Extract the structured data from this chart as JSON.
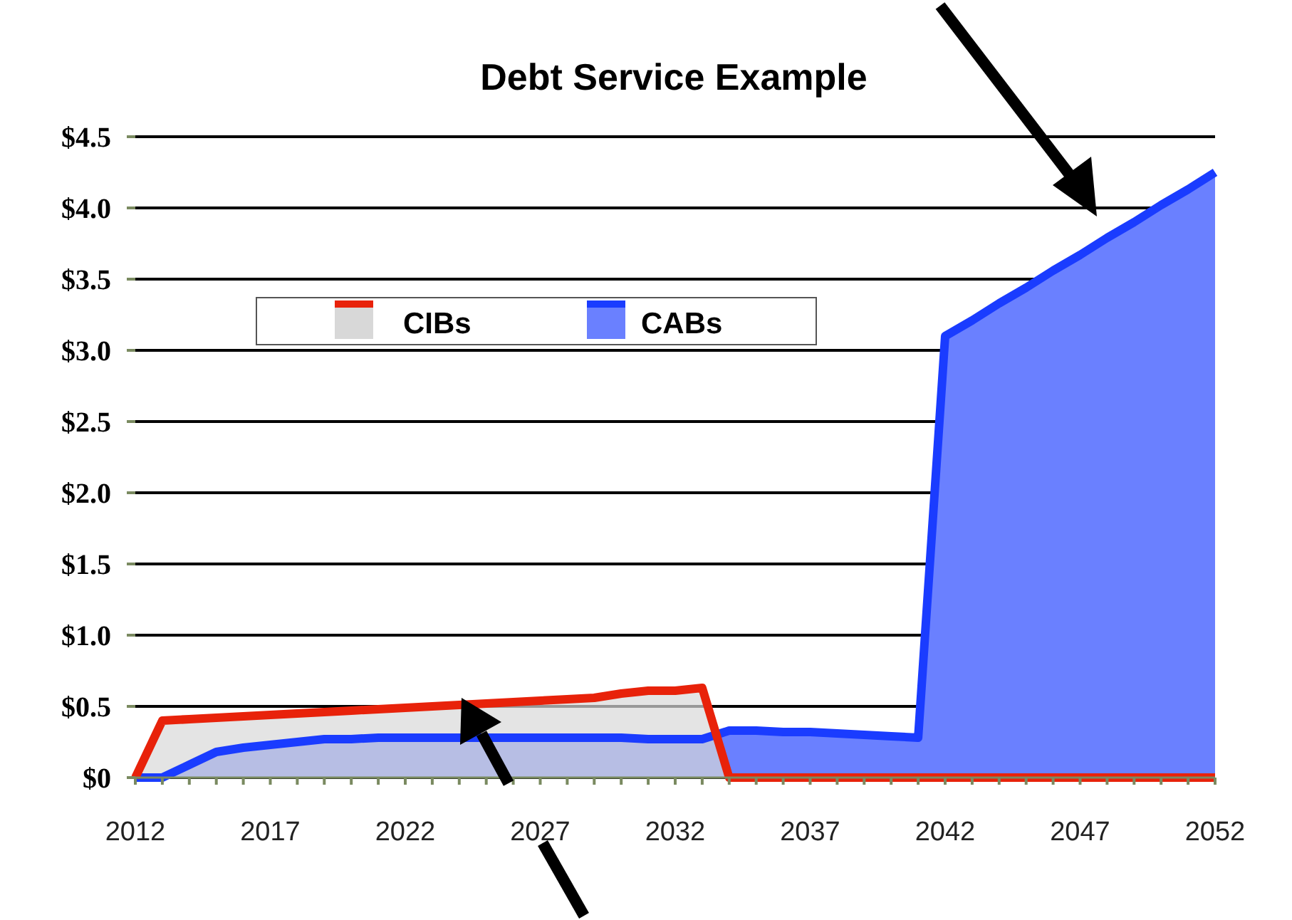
{
  "chart_data": {
    "type": "area",
    "title": "Debt Service Example",
    "x": [
      2012,
      2013,
      2014,
      2015,
      2016,
      2017,
      2018,
      2019,
      2020,
      2021,
      2022,
      2023,
      2024,
      2025,
      2026,
      2027,
      2028,
      2029,
      2030,
      2031,
      2032,
      2033,
      2034,
      2035,
      2036,
      2037,
      2038,
      2039,
      2040,
      2041,
      2042,
      2043,
      2044,
      2045,
      2046,
      2047,
      2048,
      2049,
      2050,
      2051,
      2052
    ],
    "series": [
      {
        "name": "CIBs",
        "color": "#e8220a",
        "values": [
          0,
          0.4,
          0.41,
          0.42,
          0.43,
          0.44,
          0.45,
          0.46,
          0.47,
          0.48,
          0.49,
          0.5,
          0.51,
          0.52,
          0.53,
          0.54,
          0.55,
          0.56,
          0.59,
          0.61,
          0.61,
          0.63,
          0,
          0,
          0,
          0,
          0,
          0,
          0,
          0,
          0,
          0,
          0,
          0,
          0,
          0,
          0,
          0,
          0,
          0,
          0
        ]
      },
      {
        "name": "CABs",
        "color": "#1a3cff",
        "values": [
          0,
          0,
          0.09,
          0.18,
          0.21,
          0.23,
          0.25,
          0.27,
          0.27,
          0.28,
          0.28,
          0.28,
          0.28,
          0.28,
          0.28,
          0.28,
          0.28,
          0.28,
          0.28,
          0.27,
          0.27,
          0.27,
          0.33,
          0.33,
          0.32,
          0.32,
          0.31,
          0.3,
          0.29,
          0.28,
          3.1,
          3.21,
          3.33,
          3.44,
          3.56,
          3.67,
          3.79,
          3.9,
          4.02,
          4.13,
          4.25
        ]
      }
    ],
    "xlim": [
      2012,
      2052
    ],
    "xticks": [
      2012,
      {
        "value": 2013,
        "label": null
      },
      {
        "value": 2014,
        "label": null
      },
      {
        "value": 2015,
        "label": null
      },
      {
        "value": 2016,
        "label": null
      },
      2017,
      {
        "value": 2018,
        "label": null
      },
      {
        "value": 2019,
        "label": null
      },
      {
        "value": 2020,
        "label": null
      },
      {
        "value": 2021,
        "label": null
      },
      2022,
      {
        "value": 2023,
        "label": null
      },
      {
        "value": 2024,
        "label": null
      },
      {
        "value": 2025,
        "label": null
      },
      {
        "value": 2026,
        "label": null
      },
      2027,
      {
        "value": 2028,
        "label": null
      },
      {
        "value": 2029,
        "label": null
      },
      {
        "value": 2030,
        "label": null
      },
      {
        "value": 2031,
        "label": null
      },
      2032,
      {
        "value": 2033,
        "label": null
      },
      {
        "value": 2034,
        "label": null
      },
      {
        "value": 2035,
        "label": null
      },
      {
        "value": 2036,
        "label": null
      },
      2037,
      {
        "value": 2038,
        "label": null
      },
      {
        "value": 2039,
        "label": null
      },
      {
        "value": 2040,
        "label": null
      },
      {
        "value": 2041,
        "label": null
      },
      2042,
      {
        "value": 2043,
        "label": null
      },
      {
        "value": 2044,
        "label": null
      },
      {
        "value": 2045,
        "label": null
      },
      {
        "value": 2046,
        "label": null
      },
      2047,
      {
        "value": 2048,
        "label": null
      },
      {
        "value": 2049,
        "label": null
      },
      {
        "value": 2050,
        "label": null
      },
      {
        "value": 2051,
        "label": null
      },
      2052
    ],
    "ylim": [
      0,
      4.5
    ],
    "yticks": [
      {
        "value": 0,
        "label": "$0"
      },
      {
        "value": 0.5,
        "label": "$0.5"
      },
      {
        "value": 1,
        "label": "$1.0"
      },
      {
        "value": 1.5,
        "label": "$1.5"
      },
      {
        "value": 2,
        "label": "$2.0"
      },
      {
        "value": 2.5,
        "label": "$2.5"
      },
      {
        "value": 3,
        "label": "$3.0"
      },
      {
        "value": 3.5,
        "label": "$3.5"
      },
      {
        "value": 4,
        "label": "$4.0"
      },
      {
        "value": 4.5,
        "label": "$4.5"
      }
    ],
    "grid": "y",
    "legend": "top left",
    "marker": "none",
    "line_style": "solid"
  }
}
